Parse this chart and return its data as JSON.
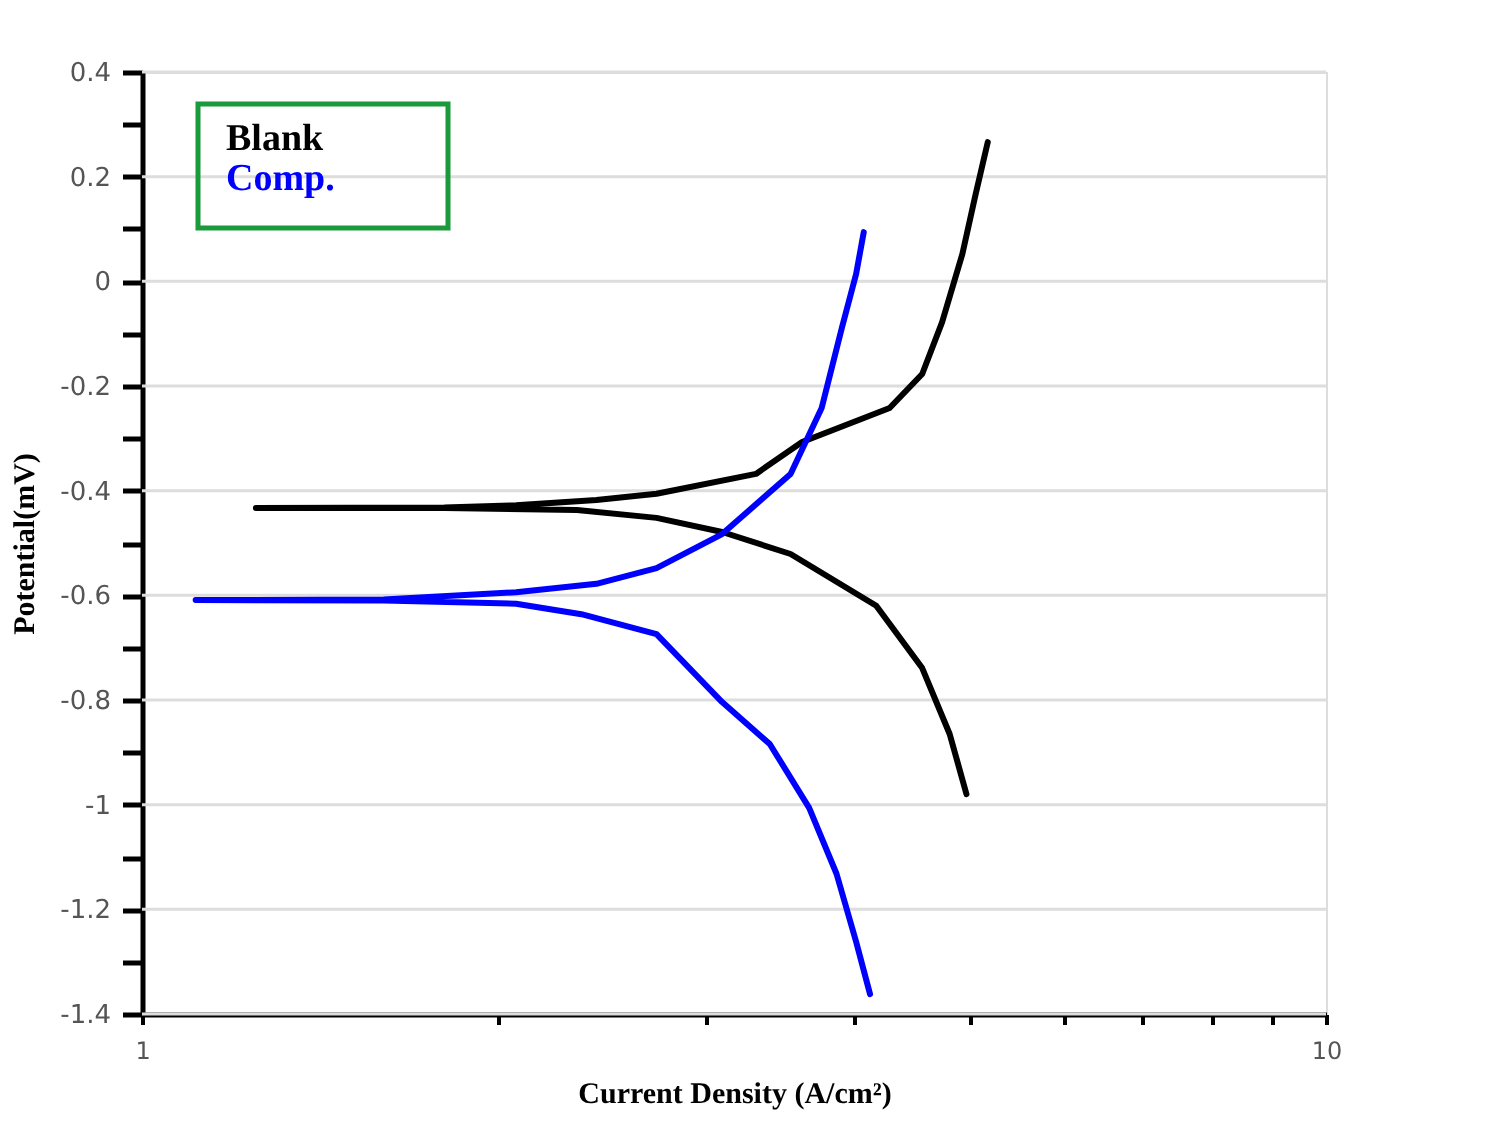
{
  "chart_data": {
    "type": "line",
    "xlabel": "Current Density (A/cm²)",
    "ylabel": "Potential(mV)",
    "log": "x",
    "xlim": [
      1,
      10
    ],
    "xticks": [
      1,
      {
        "value": 2,
        "label": null
      },
      {
        "value": 3,
        "label": null
      },
      {
        "value": 4,
        "label": null
      },
      {
        "value": 5,
        "label": null
      },
      {
        "value": 6,
        "label": null
      },
      {
        "value": 7,
        "label": null
      },
      {
        "value": 8,
        "label": null
      },
      {
        "value": 9,
        "label": null
      },
      10
    ],
    "ylim": [
      -1.4,
      0.4
    ],
    "yticks": [
      -1.4,
      {
        "value": -1.3,
        "label": null
      },
      -1.2,
      {
        "value": -1.1,
        "label": null
      },
      -1,
      {
        "value": -0.9,
        "label": null
      },
      -0.8,
      {
        "value": -0.7,
        "label": null
      },
      -0.6,
      {
        "value": -0.5,
        "label": null
      },
      -0.4,
      {
        "value": -0.3,
        "label": null
      },
      -0.2,
      {
        "value": -0.1,
        "label": null
      },
      0,
      {
        "value": 0.1,
        "label": null
      },
      0.2,
      {
        "value": 0.3,
        "label": null
      },
      0.4
    ],
    "grid": "y",
    "legend": "top left",
    "line_style": "solid",
    "marker": "none",
    "series": [
      {
        "name": "Blank",
        "color": "#000000",
        "x": [
          4.97,
          4.81,
          4.56,
          4.17,
          3.53,
          3.09,
          2.72,
          2.33,
          1.8,
          1.248,
          1.8,
          2.07,
          2.42,
          2.72,
          3.3,
          3.61,
          4.28,
          4.56,
          4.74,
          4.93,
          5.06,
          5.18
        ],
        "values": [
          -0.98,
          -0.865,
          -0.739,
          -0.62,
          -0.521,
          -0.479,
          -0.452,
          -0.437,
          -0.433,
          -0.433,
          -0.432,
          -0.428,
          -0.418,
          -0.406,
          -0.368,
          -0.307,
          -0.242,
          -0.177,
          -0.078,
          0.052,
          0.167,
          0.266
        ]
      },
      {
        "name": "Comp.",
        "color": "#0000ff",
        "x": [
          4.12,
          4.01,
          3.86,
          3.66,
          3.39,
          3.09,
          2.72,
          2.35,
          2.07,
          1.6,
          1.11,
          1.6,
          2.07,
          2.42,
          2.72,
          3.09,
          3.53,
          3.75,
          3.9,
          4.01,
          4.07
        ],
        "values": [
          -1.362,
          -1.262,
          -1.132,
          -1.006,
          -0.884,
          -0.804,
          -0.674,
          -0.636,
          -0.616,
          -0.61,
          -0.609,
          -0.608,
          -0.594,
          -0.578,
          -0.548,
          -0.483,
          -0.368,
          -0.242,
          -0.089,
          0.014,
          0.094
        ]
      }
    ]
  }
}
